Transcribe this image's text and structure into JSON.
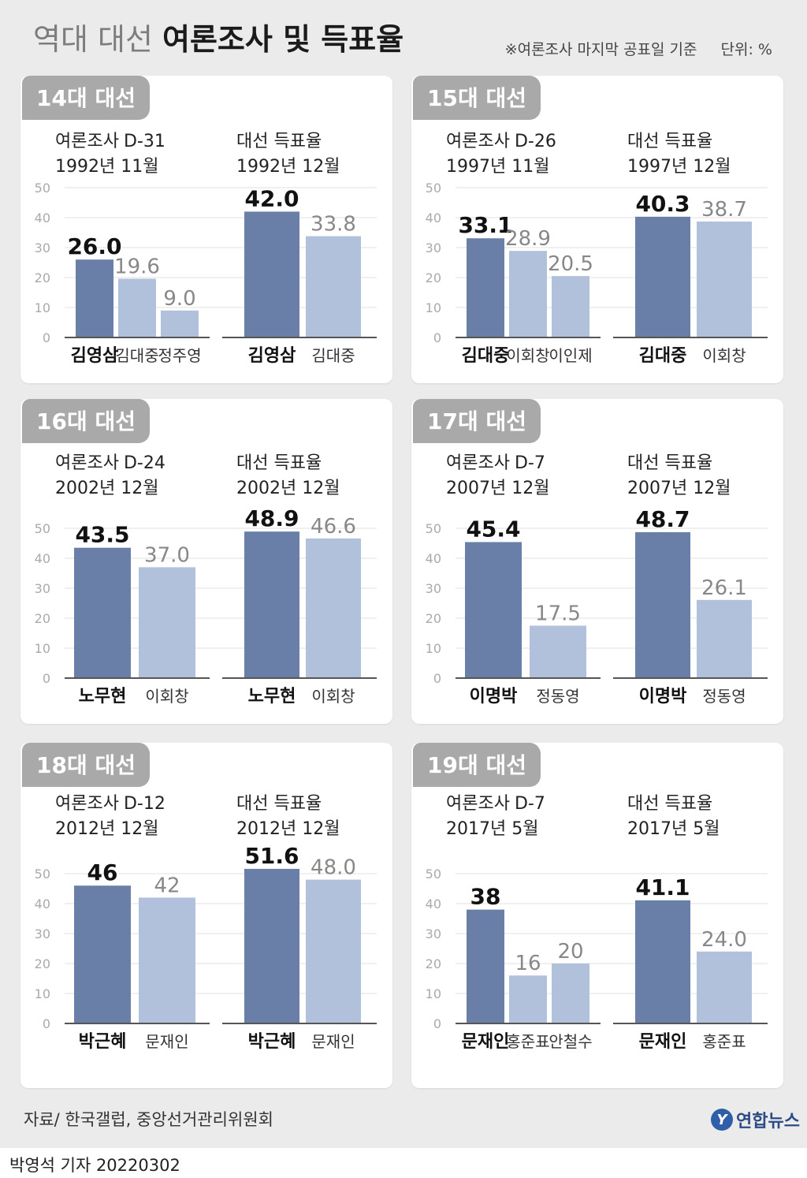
{
  "header": {
    "title_light": "역대 대선",
    "title_bold": "여론조사 및 득표율",
    "note": "※여론조사 마지막 공표일 기준",
    "unit": "단위: %"
  },
  "colors": {
    "winner_bar": "#6a7fa8",
    "other_bar": "#b1c1dc",
    "winner_label": "#111111",
    "other_label": "#888888",
    "grid": "#e2e2e2",
    "axis": "#555555",
    "tick": "#aaaaaa"
  },
  "chart_data": [
    {
      "type": "bar",
      "election": "14대 대선",
      "poll": {
        "label": "여론조사",
        "dday": "D-31",
        "date": "1992년 11월",
        "categories": [
          "김영삼",
          "김대중",
          "정주영"
        ],
        "values": [
          26.0,
          19.6,
          9.0
        ],
        "labels": [
          "26.0",
          "19.6",
          "9.0"
        ]
      },
      "result": {
        "label": "대선 득표율",
        "date": "1992년 12월",
        "categories": [
          "김영삼",
          "김대중"
        ],
        "values": [
          42.0,
          33.8
        ],
        "labels": [
          "42.0",
          "33.8"
        ]
      },
      "yticks": [
        0,
        10,
        20,
        30,
        40,
        50
      ],
      "ylim": [
        0,
        50
      ]
    },
    {
      "type": "bar",
      "election": "15대 대선",
      "poll": {
        "label": "여론조사",
        "dday": "D-26",
        "date": "1997년 11월",
        "categories": [
          "김대중",
          "이회창",
          "이인제"
        ],
        "values": [
          33.1,
          28.9,
          20.5
        ],
        "labels": [
          "33.1",
          "28.9",
          "20.5"
        ]
      },
      "result": {
        "label": "대선 득표율",
        "date": "1997년 12월",
        "categories": [
          "김대중",
          "이회창"
        ],
        "values": [
          40.3,
          38.7
        ],
        "labels": [
          "40.3",
          "38.7"
        ]
      },
      "yticks": [
        0,
        10,
        20,
        30,
        40,
        50
      ],
      "ylim": [
        0,
        50
      ]
    },
    {
      "type": "bar",
      "election": "16대 대선",
      "poll": {
        "label": "여론조사",
        "dday": "D-24",
        "date": "2002년 12월",
        "categories": [
          "노무현",
          "이회창"
        ],
        "values": [
          43.5,
          37.0
        ],
        "labels": [
          "43.5",
          "37.0"
        ]
      },
      "result": {
        "label": "대선 득표율",
        "date": "2002년 12월",
        "categories": [
          "노무현",
          "이회창"
        ],
        "values": [
          48.9,
          46.6
        ],
        "labels": [
          "48.9",
          "46.6"
        ]
      },
      "yticks": [
        0,
        10,
        20,
        30,
        40,
        50
      ],
      "ylim": [
        0,
        50
      ]
    },
    {
      "type": "bar",
      "election": "17대 대선",
      "poll": {
        "label": "여론조사",
        "dday": "D-7",
        "date": "2007년 12월",
        "categories": [
          "이명박",
          "정동영"
        ],
        "values": [
          45.4,
          17.5
        ],
        "labels": [
          "45.4",
          "17.5"
        ]
      },
      "result": {
        "label": "대선 득표율",
        "date": "2007년 12월",
        "categories": [
          "이명박",
          "정동영"
        ],
        "values": [
          48.7,
          26.1
        ],
        "labels": [
          "48.7",
          "26.1"
        ]
      },
      "yticks": [
        0,
        10,
        20,
        30,
        40,
        50
      ],
      "ylim": [
        0,
        50
      ]
    },
    {
      "type": "bar",
      "election": "18대 대선",
      "poll": {
        "label": "여론조사",
        "dday": "D-12",
        "date": "2012년 12월",
        "categories": [
          "박근혜",
          "문재인"
        ],
        "values": [
          46,
          42
        ],
        "labels": [
          "46",
          "42"
        ]
      },
      "result": {
        "label": "대선 득표율",
        "date": "2012년 12월",
        "categories": [
          "박근혜",
          "문재인"
        ],
        "values": [
          51.6,
          48.0
        ],
        "labels": [
          "51.6",
          "48.0"
        ]
      },
      "yticks": [
        0,
        10,
        20,
        30,
        40,
        50
      ],
      "ylim": [
        0,
        50
      ]
    },
    {
      "type": "bar",
      "election": "19대 대선",
      "poll": {
        "label": "여론조사",
        "dday": "D-7",
        "date": "2017년 5월",
        "categories": [
          "문재인",
          "홍준표",
          "안철수"
        ],
        "values": [
          38,
          16,
          20
        ],
        "labels": [
          "38",
          "16",
          "20"
        ]
      },
      "result": {
        "label": "대선 득표율",
        "date": "2017년 5월",
        "categories": [
          "문재인",
          "홍준표"
        ],
        "values": [
          41.1,
          24.0
        ],
        "labels": [
          "41.1",
          "24.0"
        ]
      },
      "yticks": [
        0,
        10,
        20,
        30,
        40,
        50
      ],
      "ylim": [
        0,
        50
      ]
    }
  ],
  "footer": {
    "source": "자료/ 한국갤럽, 중앙선거관리위원회",
    "logo_mark": "Y",
    "logo_text": "연합뉴스",
    "credit": "박영석 기자  20220302"
  }
}
